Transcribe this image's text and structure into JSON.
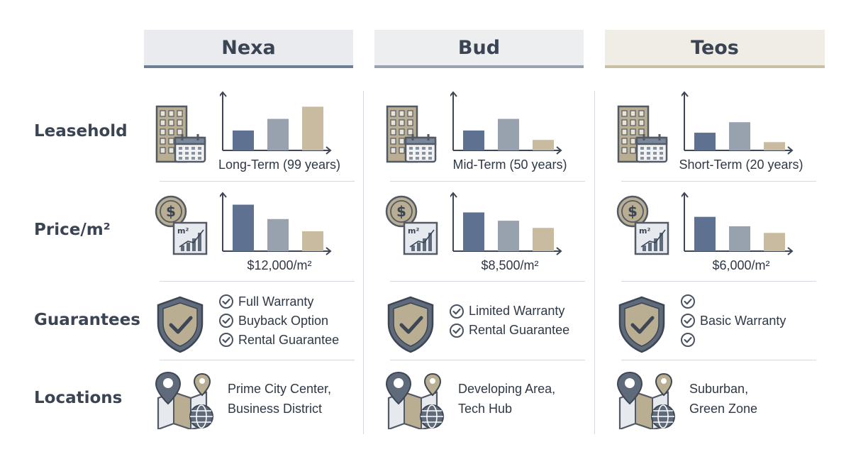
{
  "columns": [
    {
      "name": "Nexa",
      "accent": "#6e7f95",
      "header_bg": "#e9ebee",
      "leasehold": {
        "caption": "Long-Term (99 years)",
        "bars": [
          0.36,
          0.57,
          0.79
        ]
      },
      "price": {
        "caption": "$12,000/m²",
        "bars": [
          0.84,
          0.58,
          0.36
        ]
      },
      "guarantees": [
        {
          "label": "Full Warranty"
        },
        {
          "label": "Buyback Option"
        },
        {
          "label": "Rental Guarantee"
        }
      ],
      "location": {
        "line1": "Prime City Center,",
        "line2": "Business District"
      }
    },
    {
      "name": "Bud",
      "accent": "#9aa3ad",
      "header_bg": "#eceef0",
      "leasehold": {
        "caption": "Mid-Term (50 years)",
        "bars": [
          0.36,
          0.57,
          0.19
        ]
      },
      "price": {
        "caption": "$8,500/m²",
        "bars": [
          0.7,
          0.55,
          0.42
        ]
      },
      "guarantees": [
        {
          "label": "Limited Warranty"
        },
        {
          "label": "Rental Guarantee"
        }
      ],
      "location": {
        "line1": "Developing Area,",
        "line2": "Tech Hub"
      }
    },
    {
      "name": "Teos",
      "accent": "#c9bfa4",
      "header_bg": "#efede6",
      "leasehold": {
        "caption": "Short-Term (20 years)",
        "bars": [
          0.32,
          0.51,
          0.15
        ]
      },
      "price": {
        "caption": "$6,000/m²",
        "bars": [
          0.62,
          0.45,
          0.33
        ]
      },
      "guarantees": [
        {
          "label": ""
        },
        {
          "label": "Basic Warranty"
        },
        {
          "label": ""
        }
      ],
      "location": {
        "line1": "Suburban,",
        "line2": "Green Zone"
      }
    }
  ],
  "rows": {
    "leasehold": "Leasehold",
    "price": "Price/m²",
    "guarantees": "Guarantees",
    "locations": "Locations"
  },
  "colors": {
    "bar_blue": "#5f7190",
    "bar_grey": "#98a2ae",
    "bar_tan": "#c8bba0",
    "axis": "#3d4654",
    "icon_fill": "#b9ad92",
    "icon_stroke": "#525a66"
  },
  "icons": [
    "building-calendar-icon",
    "dollar-chart-icon",
    "shield-check-icon",
    "map-pins-globe-icon",
    "check-circle-icon"
  ]
}
